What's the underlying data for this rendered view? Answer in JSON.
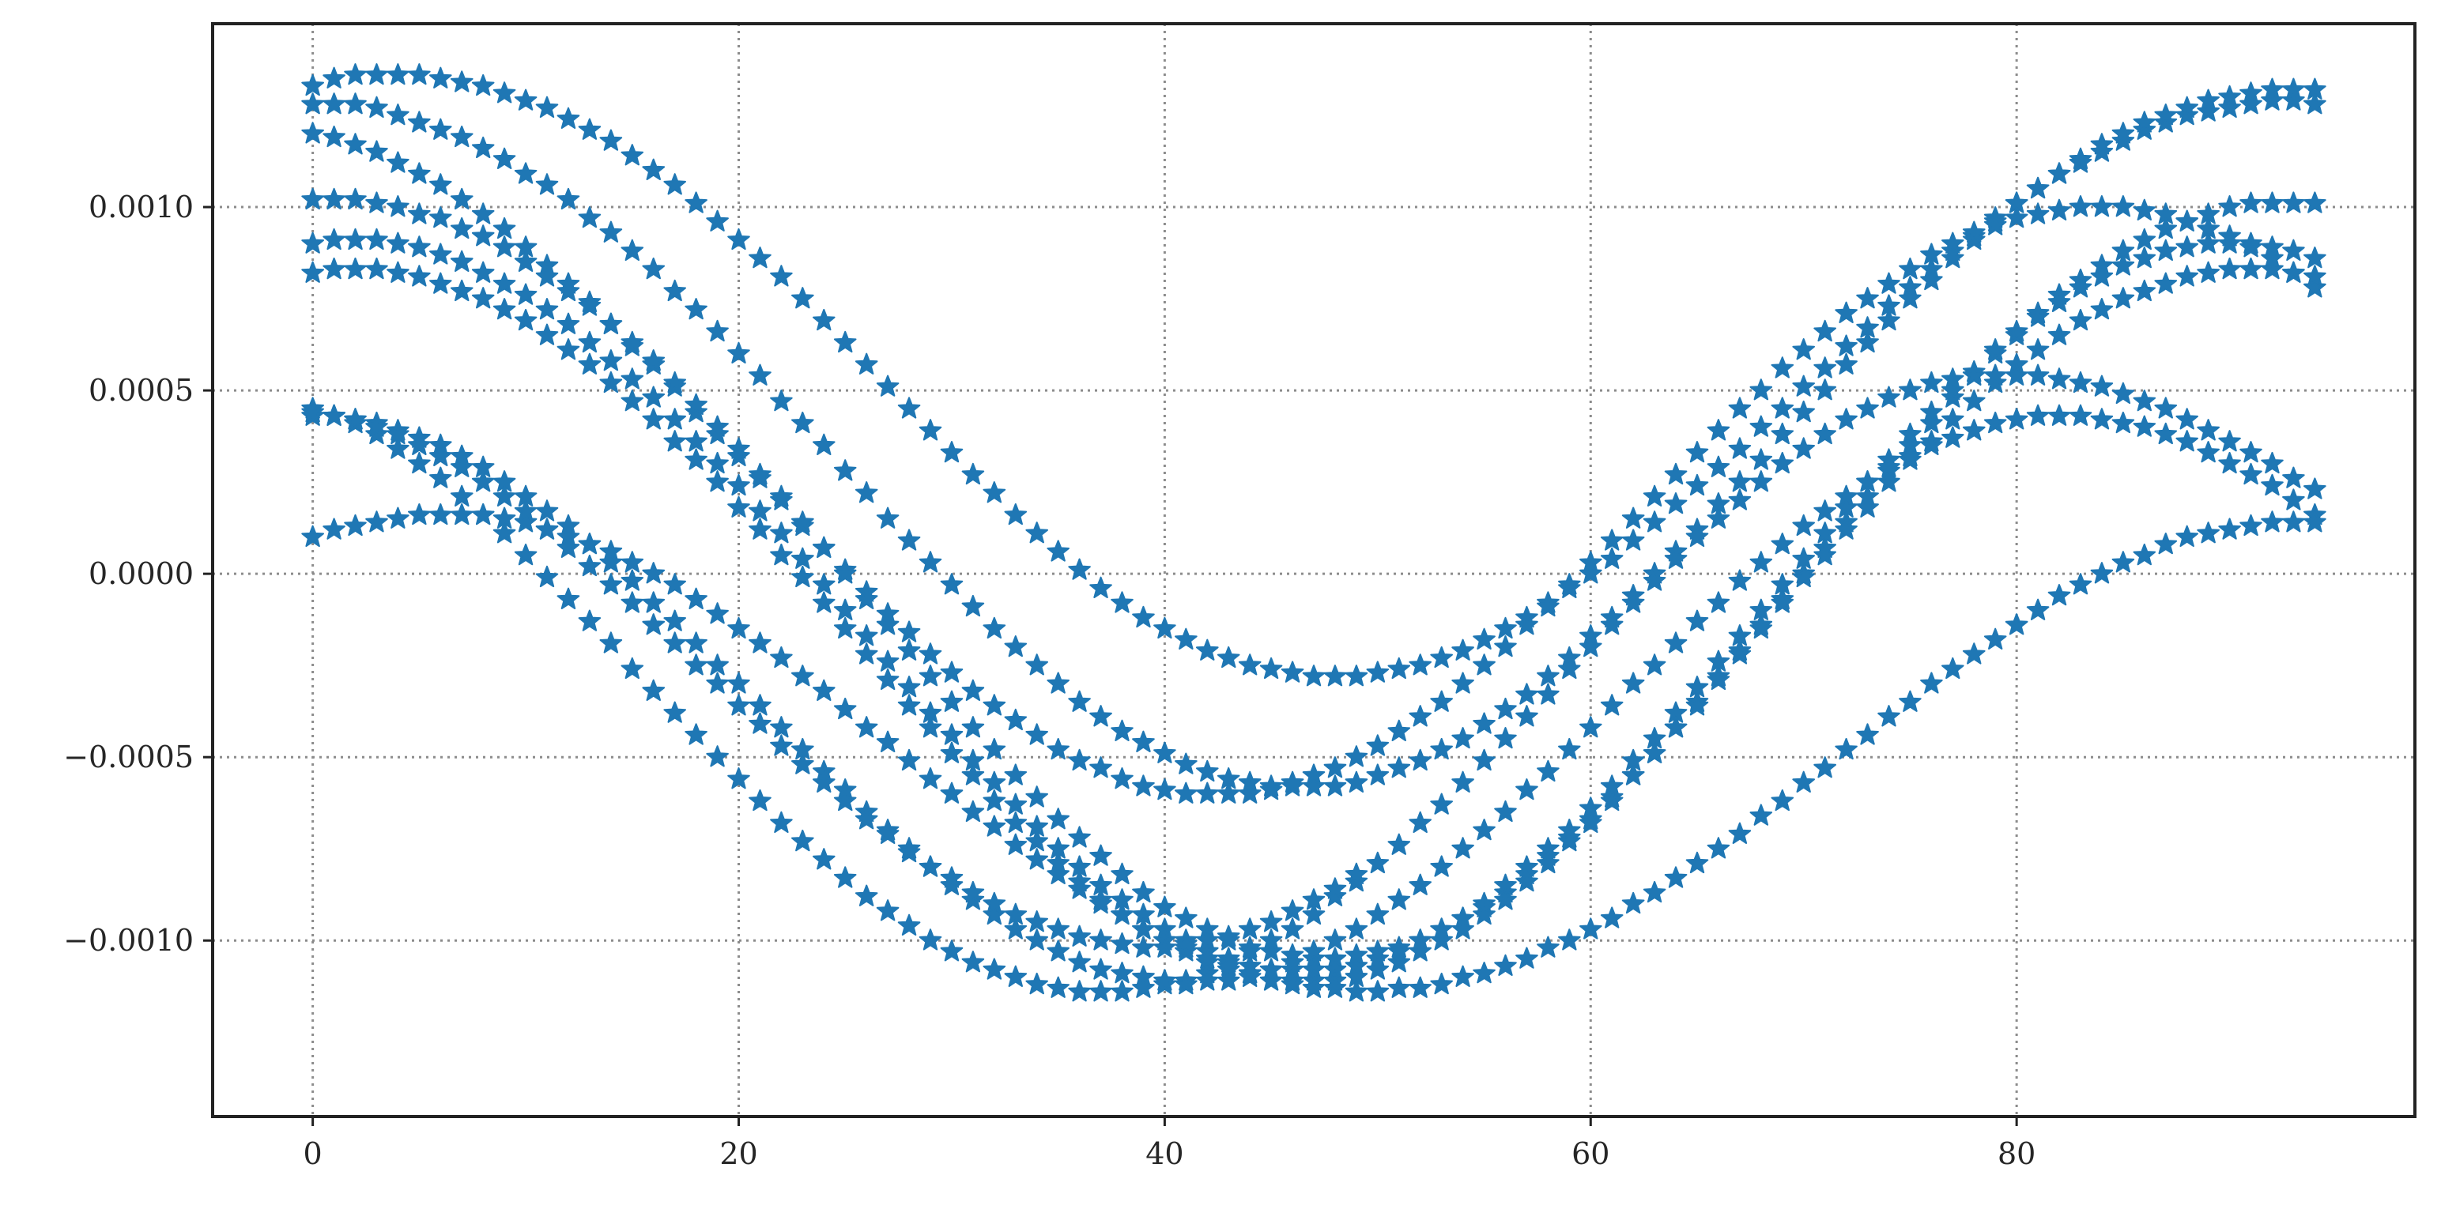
{
  "chart_data": {
    "type": "scatter",
    "title": "",
    "xlabel": "",
    "ylabel": "",
    "xlim": [
      -4.7,
      98.7
    ],
    "ylim": [
      -0.00148,
      0.0015
    ],
    "x_ticks": [
      0,
      20,
      40,
      60,
      80
    ],
    "x_tick_labels": [
      "0",
      "20",
      "40",
      "60",
      "80"
    ],
    "y_ticks": [
      -0.001,
      -0.0005,
      0.0,
      0.0005,
      0.001
    ],
    "y_tick_labels": [
      "−0.0010",
      "−0.0005",
      "0.0000",
      "0.0005",
      "0.0010"
    ],
    "grid": true,
    "legend": "none",
    "marker": "star",
    "color": "#1f77b4",
    "series": [
      {
        "x_start": 0,
        "x_end": 94,
        "x_step": 1,
        "y": [
          0.00133,
          0.00135,
          0.00136,
          0.00136,
          0.00136,
          0.00136,
          0.00135,
          0.00134,
          0.00133,
          0.00131,
          0.00129,
          0.00127,
          0.00124,
          0.00121,
          0.00118,
          0.00114,
          0.0011,
          0.00106,
          0.00101,
          0.00096,
          0.00091,
          0.00086,
          0.00081,
          0.00075,
          0.00069,
          0.00063,
          0.00057,
          0.00051,
          0.00045,
          0.00039,
          0.00033,
          0.00027,
          0.00022,
          0.00016,
          0.00011,
          6e-05,
          1e-05,
          -4e-05,
          -8e-05,
          -0.00012,
          -0.00015,
          -0.00018,
          -0.00021,
          -0.00023,
          -0.00025,
          -0.00026,
          -0.00027,
          -0.00028,
          -0.00028,
          -0.00028,
          -0.00027,
          -0.00026,
          -0.00025,
          -0.00023,
          -0.00021,
          -0.00018,
          -0.00015,
          -0.00012,
          -8e-05,
          -4e-05,
          0.0,
          4e-05,
          9e-05,
          0.00014,
          0.00019,
          0.00024,
          0.00029,
          0.00034,
          0.0004,
          0.00045,
          0.00051,
          0.00056,
          0.00062,
          0.00067,
          0.00073,
          0.00078,
          0.00083,
          0.00088,
          0.00092,
          0.00097,
          0.00101,
          0.00105,
          0.00109,
          0.00112,
          0.00115,
          0.00118,
          0.00121,
          0.00123,
          0.00125,
          0.00126,
          0.00127,
          0.00128,
          0.00129,
          0.00129,
          0.00128
        ]
      },
      {
        "x_start": 0,
        "x_end": 94,
        "x_step": 1,
        "y": [
          0.00128,
          0.00128,
          0.00128,
          0.00127,
          0.00125,
          0.00123,
          0.00121,
          0.00119,
          0.00116,
          0.00113,
          0.00109,
          0.00106,
          0.00102,
          0.00097,
          0.00093,
          0.00088,
          0.00083,
          0.00077,
          0.00072,
          0.00066,
          0.0006,
          0.00054,
          0.00047,
          0.00041,
          0.00035,
          0.00028,
          0.00022,
          0.00015,
          9e-05,
          3e-05,
          -3e-05,
          -9e-05,
          -0.00015,
          -0.0002,
          -0.00025,
          -0.0003,
          -0.00035,
          -0.00039,
          -0.00043,
          -0.00046,
          -0.00049,
          -0.00052,
          -0.00054,
          -0.00056,
          -0.00057,
          -0.00058,
          -0.00058,
          -0.00058,
          -0.00058,
          -0.00057,
          -0.00055,
          -0.00053,
          -0.00051,
          -0.00048,
          -0.00045,
          -0.00041,
          -0.00037,
          -0.00033,
          -0.00028,
          -0.00023,
          -0.00017,
          -0.00012,
          -6e-05,
          0.0,
          6e-05,
          0.00012,
          0.00019,
          0.00025,
          0.00031,
          0.00038,
          0.00044,
          0.0005,
          0.00057,
          0.00063,
          0.00069,
          0.00075,
          0.0008,
          0.00086,
          0.00091,
          0.00096,
          0.00101,
          0.00105,
          0.00109,
          0.00113,
          0.00117,
          0.0012,
          0.00123,
          0.00125,
          0.00127,
          0.00129,
          0.0013,
          0.00131,
          0.00132,
          0.00132,
          0.00132
        ]
      },
      {
        "x_start": 0,
        "x_end": 94,
        "x_step": 1,
        "y": [
          0.0012,
          0.00119,
          0.00117,
          0.00115,
          0.00112,
          0.00109,
          0.00106,
          0.00102,
          0.00098,
          0.00094,
          0.00089,
          0.00084,
          0.00079,
          0.00074,
          0.00068,
          0.00062,
          0.00057,
          0.00051,
          0.00044,
          0.00038,
          0.00032,
          0.00026,
          0.0002,
          0.00013,
          7e-05,
          1e-05,
          -5e-05,
          -0.00011,
          -0.00016,
          -0.00022,
          -0.00027,
          -0.00032,
          -0.00036,
          -0.0004,
          -0.00044,
          -0.00048,
          -0.00051,
          -0.00053,
          -0.00056,
          -0.00058,
          -0.00059,
          -0.0006,
          -0.0006,
          -0.0006,
          -0.0006,
          -0.00059,
          -0.00057,
          -0.00055,
          -0.00053,
          -0.0005,
          -0.00047,
          -0.00043,
          -0.00039,
          -0.00035,
          -0.0003,
          -0.00025,
          -0.0002,
          -0.00014,
          -9e-05,
          -3e-05,
          3e-05,
          9e-05,
          0.00015,
          0.00021,
          0.00027,
          0.00033,
          0.00039,
          0.00045,
          0.0005,
          0.00056,
          0.00061,
          0.00066,
          0.00071,
          0.00075,
          0.00079,
          0.00083,
          0.00087,
          0.0009,
          0.00093,
          0.00095,
          0.00097,
          0.00098,
          0.00099,
          0.001,
          0.001,
          0.001,
          0.00099,
          0.00098,
          0.00096,
          0.00094,
          0.00092,
          0.00089,
          0.00086,
          0.00082,
          0.00078
        ]
      },
      {
        "x_start": 0,
        "x_end": 94,
        "x_step": 1,
        "y": [
          0.00102,
          0.00102,
          0.00102,
          0.00101,
          0.001,
          0.00098,
          0.00097,
          0.00094,
          0.00092,
          0.00089,
          0.00085,
          0.00081,
          0.00077,
          0.00073,
          0.00068,
          0.00063,
          0.00058,
          0.00052,
          0.00046,
          0.0004,
          0.00034,
          0.00027,
          0.00021,
          0.00014,
          7e-05,
          0.0,
          -7e-05,
          -0.00014,
          -0.00021,
          -0.00028,
          -0.00035,
          -0.00042,
          -0.00048,
          -0.00055,
          -0.00061,
          -0.00067,
          -0.00072,
          -0.00077,
          -0.00082,
          -0.00087,
          -0.00091,
          -0.00094,
          -0.00097,
          -0.001,
          -0.00102,
          -0.00103,
          -0.00104,
          -0.00105,
          -0.00105,
          -0.00104,
          -0.00103,
          -0.00102,
          -0.001,
          -0.00097,
          -0.00094,
          -0.00091,
          -0.00087,
          -0.00082,
          -0.00077,
          -0.00072,
          -0.00067,
          -0.00061,
          -0.00055,
          -0.00049,
          -0.00042,
          -0.00035,
          -0.00028,
          -0.00021,
          -0.00014,
          -7e-05,
          0.0,
          7e-05,
          0.00014,
          0.00021,
          0.00028,
          0.00035,
          0.00041,
          0.00048,
          0.00054,
          0.0006,
          0.00065,
          0.00071,
          0.00076,
          0.0008,
          0.00084,
          0.00088,
          0.00091,
          0.00094,
          0.00096,
          0.00098,
          0.001,
          0.00101,
          0.00101,
          0.00101,
          0.00101
        ]
      },
      {
        "x_start": 0,
        "x_end": 94,
        "x_step": 1,
        "y": [
          0.0009,
          0.00091,
          0.00091,
          0.00091,
          0.0009,
          0.00089,
          0.00087,
          0.00085,
          0.00082,
          0.00079,
          0.00076,
          0.00072,
          0.00068,
          0.00063,
          0.00058,
          0.00053,
          0.00048,
          0.00042,
          0.00036,
          0.0003,
          0.00024,
          0.00017,
          0.00011,
          4e-05,
          -3e-05,
          -0.0001,
          -0.00017,
          -0.00024,
          -0.00031,
          -0.00038,
          -0.00044,
          -0.00051,
          -0.00057,
          -0.00063,
          -0.00069,
          -0.00075,
          -0.0008,
          -0.00085,
          -0.00089,
          -0.00093,
          -0.00097,
          -0.001,
          -0.00103,
          -0.00105,
          -0.00107,
          -0.00108,
          -0.00108,
          -0.00108,
          -0.00108,
          -0.00107,
          -0.00105,
          -0.00103,
          -0.001,
          -0.00097,
          -0.00094,
          -0.0009,
          -0.00085,
          -0.0008,
          -0.00075,
          -0.0007,
          -0.00064,
          -0.00058,
          -0.00051,
          -0.00045,
          -0.00038,
          -0.00031,
          -0.00024,
          -0.00017,
          -0.0001,
          -3e-05,
          4e-05,
          0.00011,
          0.00018,
          0.00025,
          0.00031,
          0.00038,
          0.00044,
          0.0005,
          0.00055,
          0.00061,
          0.00066,
          0.0007,
          0.00074,
          0.00078,
          0.00081,
          0.00084,
          0.00086,
          0.00088,
          0.00089,
          0.0009,
          0.0009,
          0.0009,
          0.00089,
          0.00088,
          0.00086
        ]
      },
      {
        "x_start": 0,
        "x_end": 94,
        "x_step": 1,
        "y": [
          0.00082,
          0.00083,
          0.00083,
          0.00083,
          0.00082,
          0.00081,
          0.00079,
          0.00077,
          0.00075,
          0.00072,
          0.00069,
          0.00065,
          0.00061,
          0.00057,
          0.00052,
          0.00047,
          0.00042,
          0.00036,
          0.00031,
          0.00025,
          0.00018,
          0.00012,
          5e-05,
          -1e-05,
          -8e-05,
          -0.00015,
          -0.00022,
          -0.00029,
          -0.00036,
          -0.00042,
          -0.00049,
          -0.00055,
          -0.00062,
          -0.00068,
          -0.00073,
          -0.00079,
          -0.00084,
          -0.00089,
          -0.00093,
          -0.00097,
          -0.001,
          -0.00103,
          -0.00106,
          -0.00108,
          -0.0011,
          -0.00111,
          -0.00111,
          -0.00111,
          -0.00111,
          -0.0011,
          -0.00108,
          -0.00106,
          -0.00103,
          -0.001,
          -0.00097,
          -0.00093,
          -0.00089,
          -0.00084,
          -0.00079,
          -0.00073,
          -0.00068,
          -0.00062,
          -0.00055,
          -0.00049,
          -0.00042,
          -0.00036,
          -0.00029,
          -0.00022,
          -0.00015,
          -8e-05,
          -1e-05,
          5e-05,
          0.00012,
          0.00018,
          0.00025,
          0.00031,
          0.00036,
          0.00042,
          0.00047,
          0.00052,
          0.00057,
          0.00061,
          0.00065,
          0.00069,
          0.00072,
          0.00075,
          0.00077,
          0.00079,
          0.00081,
          0.00082,
          0.00083,
          0.00083,
          0.00083,
          0.00082,
          0.00081
        ]
      },
      {
        "x_start": 0,
        "x_end": 94,
        "x_step": 1,
        "y": [
          0.00045,
          0.00043,
          0.00041,
          0.00038,
          0.00034,
          0.0003,
          0.00026,
          0.00021,
          0.00016,
          0.00011,
          5e-05,
          -1e-05,
          -7e-05,
          -0.00013,
          -0.00019,
          -0.00026,
          -0.00032,
          -0.00038,
          -0.00044,
          -0.0005,
          -0.00056,
          -0.00062,
          -0.00068,
          -0.00073,
          -0.00078,
          -0.00083,
          -0.00088,
          -0.00092,
          -0.00096,
          -0.001,
          -0.00103,
          -0.00106,
          -0.00108,
          -0.0011,
          -0.00112,
          -0.00113,
          -0.00114,
          -0.00114,
          -0.00114,
          -0.00113,
          -0.00112,
          -0.00111,
          -0.00109,
          -0.00106,
          -0.00103,
          -0.001,
          -0.00097,
          -0.00093,
          -0.00088,
          -0.00084,
          -0.00079,
          -0.00074,
          -0.00068,
          -0.00063,
          -0.00057,
          -0.00051,
          -0.00045,
          -0.00039,
          -0.00033,
          -0.00026,
          -0.0002,
          -0.00014,
          -8e-05,
          -2e-05,
          4e-05,
          0.0001,
          0.00015,
          0.0002,
          0.00025,
          0.0003,
          0.00034,
          0.00038,
          0.00042,
          0.00045,
          0.00048,
          0.0005,
          0.00052,
          0.00053,
          0.00054,
          0.00054,
          0.00054,
          0.00054,
          0.00053,
          0.00052,
          0.00051,
          0.00049,
          0.00047,
          0.00045,
          0.00042,
          0.00039,
          0.00036,
          0.00033,
          0.0003,
          0.00026,
          0.00023
        ]
      },
      {
        "x_start": 0,
        "x_end": 94,
        "x_step": 1,
        "y": [
          0.00043,
          0.00043,
          0.00042,
          0.00041,
          0.00039,
          0.00037,
          0.00035,
          0.00032,
          0.00029,
          0.00025,
          0.00021,
          0.00017,
          0.00013,
          8e-05,
          3e-05,
          -2e-05,
          -8e-05,
          -0.00013,
          -0.00019,
          -0.00025,
          -0.0003,
          -0.00036,
          -0.00042,
          -0.00048,
          -0.00054,
          -0.00059,
          -0.00065,
          -0.0007,
          -0.00075,
          -0.0008,
          -0.00085,
          -0.00089,
          -0.00093,
          -0.00097,
          -0.001,
          -0.00103,
          -0.00106,
          -0.00108,
          -0.00109,
          -0.0011,
          -0.00111,
          -0.00112,
          -0.00111,
          -0.00111,
          -0.00109,
          -0.00108,
          -0.00106,
          -0.00103,
          -0.001,
          -0.00097,
          -0.00093,
          -0.00089,
          -0.00085,
          -0.0008,
          -0.00075,
          -0.0007,
          -0.00065,
          -0.00059,
          -0.00054,
          -0.00048,
          -0.00042,
          -0.00036,
          -0.0003,
          -0.00025,
          -0.00019,
          -0.00013,
          -8e-05,
          -2e-05,
          3e-05,
          8e-05,
          0.00013,
          0.00017,
          0.00021,
          0.00025,
          0.00029,
          0.00032,
          0.00035,
          0.00037,
          0.00039,
          0.00041,
          0.00042,
          0.00043,
          0.00043,
          0.00043,
          0.00042,
          0.00041,
          0.0004,
          0.00038,
          0.00036,
          0.00033,
          0.0003,
          0.00027,
          0.00024,
          0.0002,
          0.00016
        ]
      },
      {
        "x_start": 0,
        "x_end": 94,
        "x_step": 1,
        "y": [
          0.0001,
          0.00012,
          0.00013,
          0.00014,
          0.00015,
          0.00016,
          0.00016,
          0.00016,
          0.00016,
          0.00015,
          0.00014,
          0.00012,
          0.0001,
          8e-05,
          6e-05,
          3e-05,
          0.0,
          -3e-05,
          -7e-05,
          -0.00011,
          -0.00015,
          -0.00019,
          -0.00023,
          -0.00028,
          -0.00032,
          -0.00037,
          -0.00042,
          -0.00046,
          -0.00051,
          -0.00056,
          -0.0006,
          -0.00065,
          -0.00069,
          -0.00074,
          -0.00078,
          -0.00082,
          -0.00086,
          -0.0009,
          -0.00093,
          -0.00097,
          -0.001,
          -0.00102,
          -0.00105,
          -0.00107,
          -0.00109,
          -0.00111,
          -0.00112,
          -0.00113,
          -0.00113,
          -0.00114,
          -0.00114,
          -0.00113,
          -0.00113,
          -0.00112,
          -0.0011,
          -0.00109,
          -0.00107,
          -0.00105,
          -0.00102,
          -0.001,
          -0.00097,
          -0.00094,
          -0.0009,
          -0.00087,
          -0.00083,
          -0.00079,
          -0.00075,
          -0.00071,
          -0.00066,
          -0.00062,
          -0.00057,
          -0.00053,
          -0.00048,
          -0.00044,
          -0.00039,
          -0.00035,
          -0.0003,
          -0.00026,
          -0.00022,
          -0.00018,
          -0.00014,
          -0.0001,
          -6e-05,
          -3e-05,
          0.0,
          3e-05,
          5e-05,
          8e-05,
          0.0001,
          0.00011,
          0.00012,
          0.00013,
          0.00014,
          0.00014,
          0.00014
        ]
      },
      {
        "x_start": 0,
        "x_end": 49,
        "x_step": 1,
        "y": [
          0.00044,
          0.00043,
          0.00042,
          0.0004,
          0.00038,
          0.00035,
          0.00032,
          0.00029,
          0.00025,
          0.00021,
          0.00017,
          0.00012,
          7e-05,
          2e-05,
          -3e-05,
          -8e-05,
          -0.00014,
          -0.00019,
          -0.00025,
          -0.0003,
          -0.00036,
          -0.00041,
          -0.00047,
          -0.00052,
          -0.00057,
          -0.00062,
          -0.00067,
          -0.00071,
          -0.00076,
          -0.0008,
          -0.00083,
          -0.00087,
          -0.0009,
          -0.00093,
          -0.00095,
          -0.00097,
          -0.00099,
          -0.001,
          -0.00101,
          -0.00102,
          -0.00102,
          -0.00101,
          -0.001,
          -0.00099,
          -0.00097,
          -0.00095,
          -0.00092,
          -0.00089,
          -0.00086,
          -0.00082
        ]
      }
    ]
  }
}
